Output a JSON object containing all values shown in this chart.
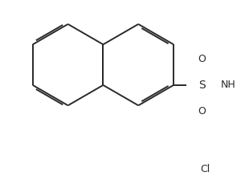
{
  "bg_color": "#ffffff",
  "line_color": "#2a2a2a",
  "line_width": 1.4,
  "figsize": [
    3.05,
    2.19
  ],
  "dpi": 100,
  "S_label": "S",
  "N_label": "NH",
  "Cl_label": "Cl",
  "O_label": "O",
  "font_size": 9
}
